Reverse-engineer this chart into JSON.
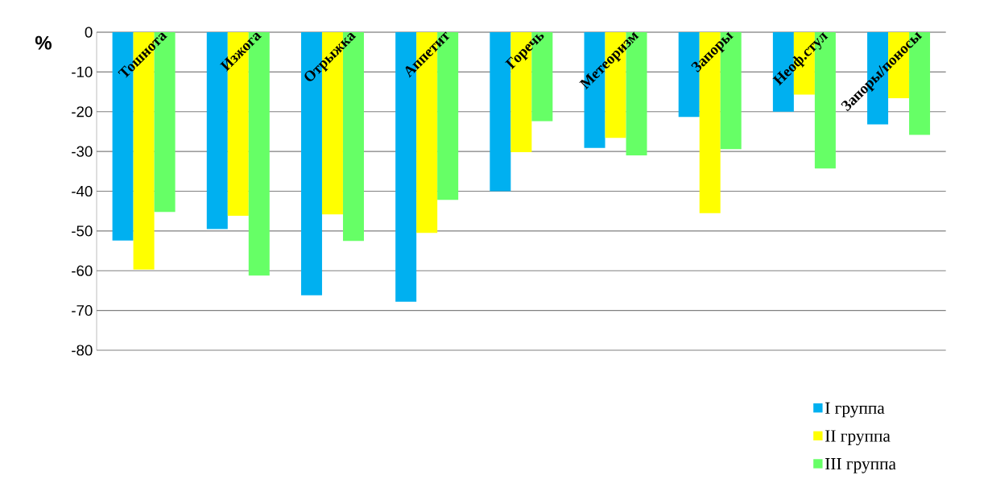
{
  "chart_data": {
    "type": "bar",
    "ylabel": "%",
    "categories": [
      "Тошнота",
      "Изжога",
      "Отрыжка",
      "Аппетит",
      "Горечь",
      "Метеоризм",
      "Запоры",
      "Неоф.стул",
      "Запоры/поносы"
    ],
    "series": [
      {
        "name": "I группа",
        "color": "#00b0f0",
        "values": [
          -52.4,
          -49.5,
          -66.2,
          -67.8,
          -40.0,
          -29.1,
          -21.3,
          -20.0,
          -23.2
        ]
      },
      {
        "name": "II группа",
        "color": "#ffff00",
        "values": [
          -59.7,
          -46.2,
          -45.8,
          -50.5,
          -30.2,
          -26.6,
          -45.5,
          -15.7,
          -16.6
        ]
      },
      {
        "name": "III группа",
        "color": "#66ff66",
        "values": [
          -45.2,
          -61.2,
          -52.5,
          -42.2,
          -22.4,
          -31.0,
          -29.4,
          -34.3,
          -25.8
        ]
      }
    ],
    "ylim": [
      -80,
      0
    ],
    "yticks": [
      -80,
      -70,
      -60,
      -50,
      -40,
      -30,
      -20,
      -10,
      0
    ],
    "grid": "y",
    "legend": "bottom right"
  }
}
